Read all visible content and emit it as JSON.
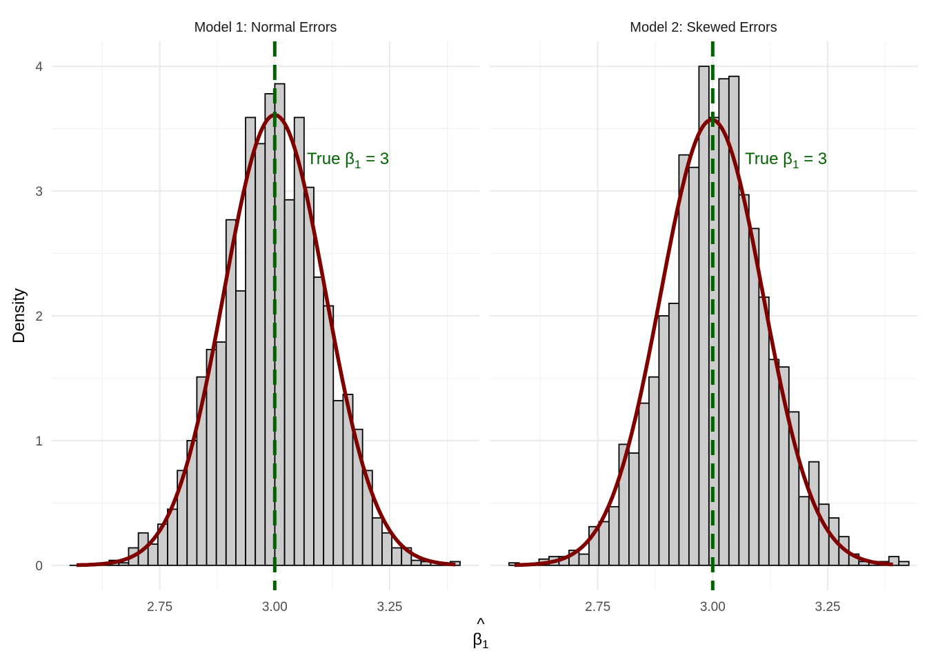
{
  "chart_data": {
    "type": "histogram",
    "xlabel": "β̂1",
    "ylabel": "Density",
    "xlim": [
      2.515,
      3.445
    ],
    "ylim": [
      -0.2,
      4.2
    ],
    "x_ticks": [
      "2.75",
      "3.00",
      "3.25"
    ],
    "x_tick_values": [
      2.75,
      3.0,
      3.25
    ],
    "y_ticks": [
      "0",
      "1",
      "2",
      "3",
      "4"
    ],
    "y_tick_values": [
      0,
      1,
      2,
      3,
      4
    ],
    "grid": true,
    "colors": {
      "bar_fill": "#cccccc",
      "bar_stroke": "#000000",
      "curve": "#800000",
      "vline": "#006400",
      "annotation": "#006400",
      "grid": "#ebebeb"
    },
    "panels": [
      {
        "title": "Model 1: Normal Errors",
        "bin_start": 2.555,
        "bin_width": 0.0212,
        "densities": [
          0,
          0,
          0,
          0,
          0.04,
          0.02,
          0.14,
          0.26,
          0.17,
          0.33,
          0.45,
          0.76,
          1.0,
          1.51,
          1.73,
          1.79,
          2.77,
          2.2,
          3.59,
          3.38,
          3.78,
          3.86,
          2.93,
          3.59,
          3.03,
          2.31,
          2.08,
          1.32,
          1.37,
          1.09,
          0.76,
          0.38,
          0.26,
          0.14,
          0.14,
          0.04,
          0.03,
          0,
          0,
          0.03
        ],
        "normal_fit": {
          "mean": 3.0,
          "sd": 0.1105,
          "from": 2.569,
          "to": 3.393
        },
        "true_value": 3,
        "annotation": {
          "text_prefix": "True β",
          "text_sub": "1",
          "text_suffix": " = 3",
          "x": 3.07,
          "y": 3.26
        }
      },
      {
        "title": "Model 2: Skewed Errors",
        "bin_start": 2.557,
        "bin_width": 0.02174,
        "densities": [
          0.02,
          0,
          0,
          0.05,
          0.07,
          0.07,
          0.12,
          0.09,
          0.31,
          0.35,
          0.47,
          0.97,
          0.9,
          1.3,
          1.51,
          2.0,
          2.1,
          3.29,
          3.19,
          4.0,
          3.59,
          3.9,
          3.92,
          2.97,
          2.7,
          2.15,
          1.65,
          1.59,
          1.23,
          0.55,
          0.83,
          0.49,
          0.38,
          0.23,
          0.09,
          0.03,
          0.03,
          0.03,
          0.07,
          0.03
        ],
        "normal_fit": {
          "mean": 2.998,
          "sd": 0.1117,
          "from": 2.569,
          "to": 3.392
        },
        "true_value": 3,
        "annotation": {
          "text_prefix": "True β",
          "text_sub": "1",
          "text_suffix": " = 3",
          "x": 3.07,
          "y": 3.26
        }
      }
    ]
  }
}
